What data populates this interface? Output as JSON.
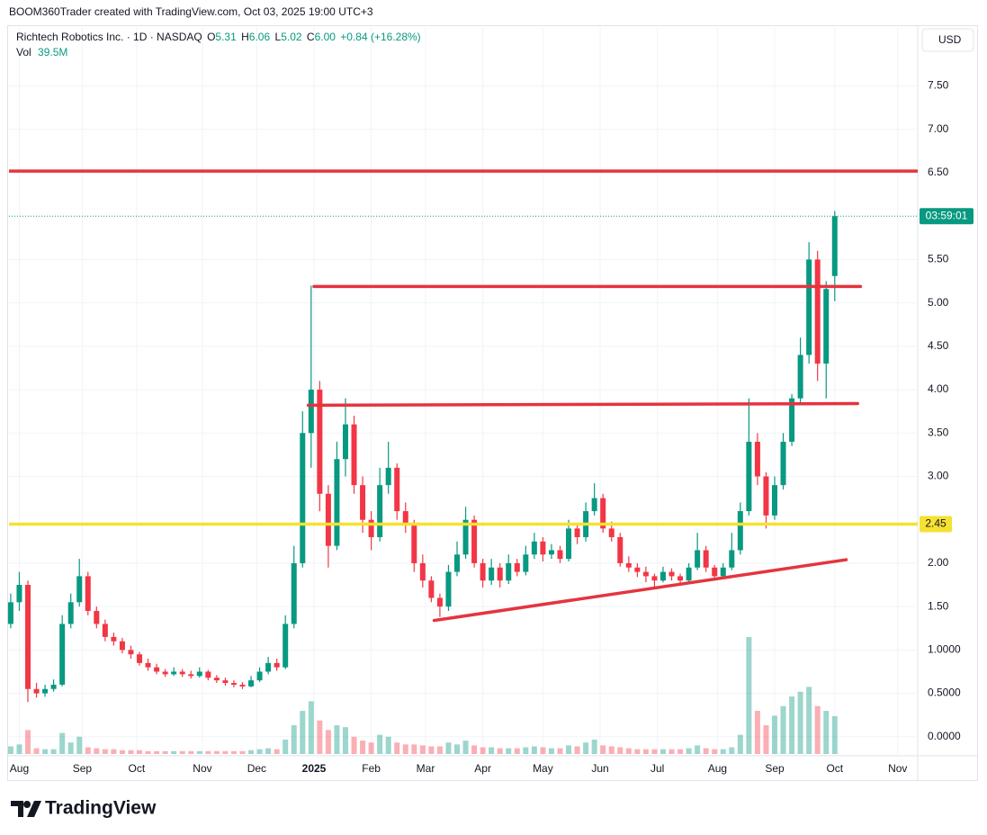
{
  "chart_data": {
    "type": "candlestick",
    "caption": "BOOM360Trader created with TradingView.com, Oct 03, 2025 19:00 UTC+3",
    "header": {
      "symbol": "Richtech Robotics Inc. · 1D · NASDAQ",
      "letters": [
        "O",
        "H",
        "L",
        "C"
      ],
      "close_label": "6.00",
      "change": "+0.84 (+16.28%)",
      "vol": "Vol",
      "vol_label": "39.5M"
    },
    "currency": "USD",
    "countdown": "03:59:01",
    "logo": "TradingView",
    "up_color": "#089981",
    "down_color": "#f23645",
    "grid": true,
    "xlim": [
      -0.6,
      317
    ],
    "ylim": [
      -0.22,
      8.18
    ],
    "xticks": [
      {
        "value": 3,
        "label": "Aug"
      },
      {
        "value": 25,
        "label": "Sep"
      },
      {
        "value": 44,
        "label": "Oct"
      },
      {
        "value": 67,
        "label": "Nov"
      },
      {
        "value": 86,
        "label": "Dec"
      },
      {
        "value": 106,
        "label": "2025"
      },
      {
        "value": 126,
        "label": "Feb"
      },
      {
        "value": 145,
        "label": "Mar"
      },
      {
        "value": 165,
        "label": "Apr"
      },
      {
        "value": 186,
        "label": "May"
      },
      {
        "value": 206,
        "label": "Jun"
      },
      {
        "value": 226,
        "label": "Jul"
      },
      {
        "value": 247,
        "label": "Aug"
      },
      {
        "value": 267,
        "label": "Sep"
      },
      {
        "value": 288,
        "label": "Oct"
      },
      {
        "value": 310,
        "label": "Nov"
      }
    ],
    "yticks": [
      {
        "value": 0,
        "label": "0.0000"
      },
      {
        "value": 0.5,
        "label": "0.5000"
      },
      {
        "value": 1,
        "label": "1.0000"
      },
      {
        "value": 1.5,
        "label": "1.50"
      },
      {
        "value": 2,
        "label": "2.00"
      },
      {
        "value": 3,
        "label": "3.00"
      },
      {
        "value": 3.5,
        "label": "3.50"
      },
      {
        "value": 4,
        "label": "4.00"
      },
      {
        "value": 4.5,
        "label": "4.50"
      },
      {
        "value": 5,
        "label": "5.00"
      },
      {
        "value": 5.5,
        "label": "5.50"
      },
      {
        "value": 6.5,
        "label": "6.50"
      },
      {
        "value": 7,
        "label": "7.00"
      },
      {
        "value": 7.5,
        "label": "7.50"
      }
    ],
    "x": [
      0,
      3,
      6,
      9,
      12,
      15,
      18,
      21,
      24,
      27,
      30,
      33,
      36,
      39,
      42,
      45,
      48,
      51,
      54,
      57,
      60,
      63,
      66,
      69,
      72,
      75,
      78,
      81,
      84,
      87,
      90,
      93,
      96,
      99,
      102,
      105,
      108,
      111,
      114,
      117,
      120,
      123,
      126,
      129,
      132,
      135,
      138,
      141,
      144,
      147,
      150,
      153,
      156,
      159,
      162,
      165,
      168,
      171,
      174,
      177,
      180,
      183,
      186,
      189,
      192,
      195,
      198,
      201,
      204,
      207,
      210,
      213,
      216,
      219,
      222,
      225,
      228,
      231,
      234,
      237,
      240,
      243,
      246,
      249,
      252,
      255,
      258,
      261,
      264,
      267,
      270,
      273,
      276,
      279,
      282,
      285,
      288
    ],
    "open": [
      1.3,
      1.55,
      1.75,
      0.55,
      0.5,
      0.55,
      0.6,
      1.3,
      1.55,
      1.85,
      1.45,
      1.3,
      1.15,
      1.1,
      1.0,
      0.95,
      0.85,
      0.8,
      0.75,
      0.72,
      0.75,
      0.72,
      0.7,
      0.75,
      0.68,
      0.65,
      0.62,
      0.6,
      0.58,
      0.65,
      0.75,
      0.85,
      0.8,
      1.3,
      2.0,
      3.5,
      4.0,
      2.8,
      2.2,
      3.2,
      3.6,
      2.9,
      2.5,
      2.3,
      2.9,
      3.1,
      2.6,
      2.45,
      2.0,
      1.8,
      1.6,
      1.5,
      1.9,
      2.1,
      2.5,
      2.0,
      1.8,
      1.95,
      1.8,
      2.0,
      1.9,
      2.1,
      2.25,
      2.1,
      2.15,
      2.05,
      2.4,
      2.3,
      2.6,
      2.75,
      2.4,
      2.3,
      2.0,
      1.95,
      1.9,
      1.85,
      1.8,
      1.9,
      1.85,
      1.8,
      1.95,
      2.15,
      1.95,
      1.85,
      1.95,
      2.15,
      2.6,
      3.4,
      3.0,
      2.55,
      2.9,
      3.4,
      3.9,
      4.4,
      5.5,
      4.3,
      5.31
    ],
    "high": [
      1.65,
      1.9,
      1.8,
      0.62,
      0.6,
      0.66,
      1.4,
      1.65,
      2.05,
      1.9,
      1.5,
      1.35,
      1.2,
      1.14,
      1.05,
      0.98,
      0.9,
      0.84,
      0.78,
      0.8,
      0.78,
      0.76,
      0.8,
      0.77,
      0.71,
      0.68,
      0.65,
      0.63,
      0.7,
      0.8,
      0.92,
      0.9,
      1.4,
      2.2,
      3.75,
      5.2,
      4.1,
      2.9,
      3.4,
      3.9,
      3.7,
      3.0,
      2.6,
      3.1,
      3.4,
      3.15,
      2.7,
      2.5,
      2.1,
      1.85,
      1.65,
      1.98,
      2.25,
      2.65,
      2.55,
      2.05,
      2.05,
      2.0,
      2.1,
      2.05,
      2.2,
      2.35,
      2.3,
      2.22,
      2.2,
      2.5,
      2.45,
      2.7,
      2.92,
      2.8,
      2.48,
      2.35,
      2.08,
      2.0,
      1.96,
      1.88,
      1.96,
      1.94,
      1.88,
      2.0,
      2.35,
      2.2,
      1.98,
      2.0,
      2.35,
      2.7,
      3.9,
      3.5,
      3.05,
      3.0,
      3.5,
      3.95,
      4.6,
      5.7,
      5.6,
      5.25,
      6.06
    ],
    "low": [
      1.25,
      1.45,
      0.4,
      0.45,
      0.46,
      0.52,
      0.58,
      1.25,
      1.5,
      1.4,
      1.25,
      1.1,
      1.05,
      0.96,
      0.9,
      0.82,
      0.76,
      0.72,
      0.69,
      0.7,
      0.69,
      0.67,
      0.68,
      0.65,
      0.62,
      0.59,
      0.57,
      0.55,
      0.57,
      0.63,
      0.72,
      0.76,
      0.78,
      1.25,
      1.95,
      3.1,
      2.6,
      1.95,
      2.15,
      3.0,
      2.8,
      2.35,
      2.15,
      2.25,
      2.8,
      2.5,
      2.35,
      1.9,
      1.72,
      1.55,
      1.38,
      1.45,
      1.85,
      2.05,
      1.95,
      1.72,
      1.75,
      1.72,
      1.76,
      1.85,
      1.86,
      2.05,
      2.02,
      2.05,
      2.0,
      2.02,
      2.22,
      2.25,
      2.55,
      2.35,
      2.25,
      1.96,
      1.9,
      1.84,
      1.78,
      1.72,
      1.78,
      1.8,
      1.74,
      1.78,
      1.92,
      1.9,
      1.8,
      1.82,
      1.92,
      2.1,
      2.55,
      2.9,
      2.4,
      2.5,
      2.85,
      3.35,
      3.85,
      4.3,
      4.1,
      3.9,
      5.02
    ],
    "close": [
      1.55,
      1.75,
      0.55,
      0.5,
      0.55,
      0.6,
      1.3,
      1.55,
      1.85,
      1.45,
      1.3,
      1.15,
      1.1,
      1.0,
      0.95,
      0.85,
      0.8,
      0.75,
      0.72,
      0.75,
      0.72,
      0.7,
      0.75,
      0.68,
      0.65,
      0.62,
      0.6,
      0.58,
      0.65,
      0.75,
      0.85,
      0.8,
      1.3,
      2.0,
      3.5,
      4.0,
      2.8,
      2.2,
      3.2,
      3.6,
      2.9,
      2.5,
      2.3,
      2.9,
      3.1,
      2.6,
      2.45,
      2.0,
      1.8,
      1.6,
      1.5,
      1.9,
      2.1,
      2.5,
      2.0,
      1.8,
      1.95,
      1.8,
      2.0,
      1.9,
      2.1,
      2.25,
      2.1,
      2.15,
      2.05,
      2.4,
      2.3,
      2.6,
      2.75,
      2.4,
      2.3,
      2.0,
      1.95,
      1.9,
      1.85,
      1.8,
      1.9,
      1.85,
      1.8,
      1.95,
      2.15,
      1.95,
      1.85,
      1.95,
      2.15,
      2.6,
      3.4,
      3.0,
      2.55,
      2.9,
      3.4,
      3.9,
      4.4,
      5.5,
      4.3,
      5.16,
      6.0
    ],
    "volume": [
      8,
      10,
      25,
      6,
      5,
      5,
      22,
      12,
      18,
      7,
      6,
      5,
      5,
      4,
      4,
      4,
      3,
      3,
      3,
      3,
      3,
      3,
      3,
      3,
      3,
      3,
      3,
      3,
      4,
      5,
      6,
      5,
      15,
      30,
      45,
      55,
      35,
      25,
      30,
      28,
      18,
      14,
      12,
      20,
      18,
      12,
      10,
      10,
      9,
      8,
      8,
      12,
      10,
      14,
      9,
      7,
      7,
      6,
      6,
      6,
      7,
      8,
      7,
      6,
      6,
      9,
      8,
      12,
      15,
      9,
      8,
      7,
      6,
      5,
      5,
      5,
      5,
      5,
      5,
      6,
      9,
      6,
      5,
      5,
      7,
      20,
      122,
      45,
      30,
      40,
      50,
      60,
      65,
      70,
      50,
      45,
      39.5
    ],
    "drawings": [
      {
        "kind": "hline",
        "price": 6.52,
        "color": "#e5343f"
      },
      {
        "kind": "segment",
        "x": [
          106,
          297
        ],
        "price": [
          5.19,
          5.19
        ],
        "color": "#e5343f"
      },
      {
        "kind": "segment",
        "x": [
          104,
          296
        ],
        "price": [
          3.82,
          3.84
        ],
        "color": "#e5343f"
      },
      {
        "kind": "hline",
        "price": 2.45,
        "color": "#f5e132"
      },
      {
        "kind": "segment",
        "x": [
          148,
          292
        ],
        "price": [
          1.34,
          2.04
        ],
        "color": "#e5343f"
      }
    ]
  }
}
